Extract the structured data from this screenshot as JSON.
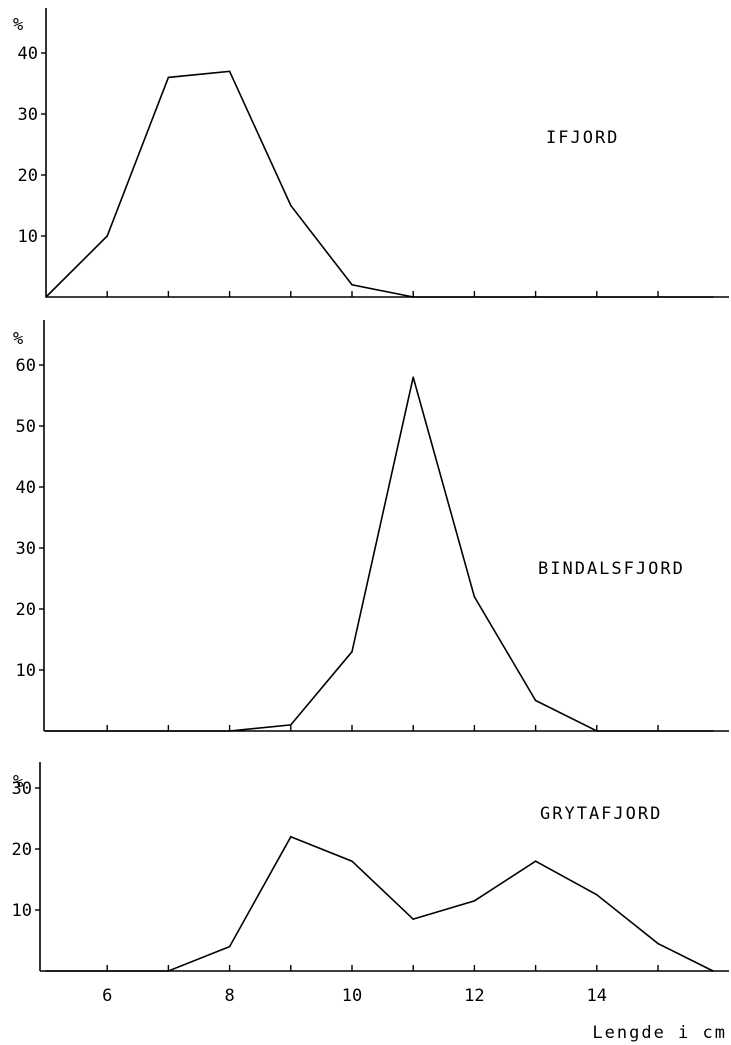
{
  "chart_data": [
    {
      "type": "line",
      "title": "IFJORD",
      "ylabel": "%",
      "xlabel": "Lengde i cm",
      "ylim": [
        0,
        40
      ],
      "yticks": [
        10,
        20,
        30,
        40
      ],
      "xlim": [
        5,
        15.9
      ],
      "series": [
        {
          "x": [
            5,
            6,
            7,
            8,
            9,
            10,
            11,
            15.9
          ],
          "values": [
            0,
            10,
            36,
            37,
            15,
            2,
            0,
            0
          ]
        }
      ]
    },
    {
      "type": "line",
      "title": "BINDALSFJORD",
      "ylabel": "%",
      "xlabel": "Lengde i cm",
      "ylim": [
        0,
        60
      ],
      "yticks": [
        10,
        20,
        30,
        40,
        50,
        60
      ],
      "xlim": [
        5,
        15.9
      ],
      "series": [
        {
          "x": [
            5,
            8,
            9,
            10,
            11,
            12,
            13,
            14,
            15.9
          ],
          "values": [
            0,
            0,
            1,
            13,
            58,
            22,
            5,
            0,
            0
          ]
        }
      ]
    },
    {
      "type": "line",
      "title": "GRYTAFJORD",
      "ylabel": "%",
      "xlabel": "Lengde i cm",
      "ylim": [
        0,
        30
      ],
      "yticks": [
        10,
        20,
        30
      ],
      "xlim": [
        5,
        15.9
      ],
      "xticklabels": [
        "6",
        "8",
        "10",
        "12",
        "14"
      ],
      "series": [
        {
          "x": [
            5,
            7,
            8,
            9,
            10,
            11,
            12,
            13,
            14,
            15,
            15.9
          ],
          "values": [
            0,
            0,
            4,
            22,
            18,
            8.5,
            11.5,
            18,
            12.5,
            4.5,
            0
          ]
        }
      ]
    }
  ]
}
